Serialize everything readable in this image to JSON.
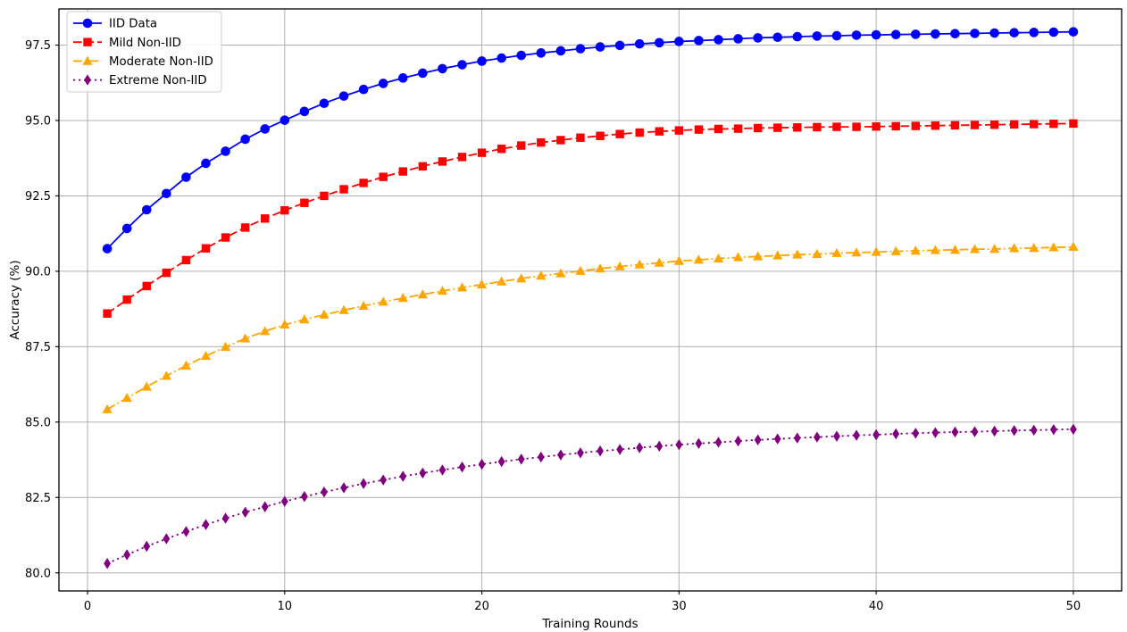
{
  "chart_data": {
    "type": "line",
    "title": "",
    "xlabel": "Training Rounds",
    "ylabel": "Accuracy (%)",
    "x": [
      1,
      2,
      3,
      4,
      5,
      6,
      7,
      8,
      9,
      10,
      11,
      12,
      13,
      14,
      15,
      16,
      17,
      18,
      19,
      20,
      21,
      22,
      23,
      24,
      25,
      26,
      27,
      28,
      29,
      30,
      31,
      32,
      33,
      34,
      35,
      36,
      37,
      38,
      39,
      40,
      41,
      42,
      43,
      44,
      45,
      46,
      47,
      48,
      49,
      50
    ],
    "series": [
      {
        "name": "IID Data",
        "color": "#0000ff",
        "marker": "circle",
        "linestyle": "solid",
        "values": [
          90.75,
          91.42,
          92.04,
          92.58,
          93.12,
          93.58,
          93.98,
          94.38,
          94.72,
          95.01,
          95.3,
          95.57,
          95.81,
          96.03,
          96.23,
          96.41,
          96.57,
          96.72,
          96.85,
          96.97,
          97.07,
          97.16,
          97.24,
          97.31,
          97.38,
          97.44,
          97.49,
          97.54,
          97.58,
          97.62,
          97.65,
          97.68,
          97.71,
          97.74,
          97.76,
          97.78,
          97.8,
          97.81,
          97.83,
          97.84,
          97.85,
          97.86,
          97.87,
          97.88,
          97.89,
          97.9,
          97.91,
          97.92,
          97.93,
          97.94
        ]
      },
      {
        "name": "Mild Non-IID",
        "color": "#ff0000",
        "marker": "square",
        "linestyle": "dashed",
        "values": [
          88.6,
          89.06,
          89.51,
          89.95,
          90.37,
          90.76,
          91.12,
          91.45,
          91.75,
          92.02,
          92.27,
          92.5,
          92.72,
          92.93,
          93.13,
          93.31,
          93.48,
          93.64,
          93.79,
          93.93,
          94.06,
          94.17,
          94.27,
          94.35,
          94.43,
          94.49,
          94.55,
          94.6,
          94.64,
          94.67,
          94.7,
          94.72,
          94.73,
          94.75,
          94.76,
          94.77,
          94.78,
          94.79,
          94.79,
          94.8,
          94.81,
          94.82,
          94.83,
          94.84,
          94.85,
          94.86,
          94.87,
          94.88,
          94.89,
          94.9
        ]
      },
      {
        "name": "Moderate Non-IID",
        "color": "#ffa500",
        "marker": "triangle",
        "linestyle": "dashdot",
        "values": [
          85.42,
          85.8,
          86.17,
          86.53,
          86.87,
          87.19,
          87.49,
          87.77,
          88.01,
          88.23,
          88.4,
          88.56,
          88.71,
          88.85,
          88.99,
          89.11,
          89.23,
          89.35,
          89.46,
          89.56,
          89.66,
          89.76,
          89.85,
          89.93,
          90.01,
          90.09,
          90.16,
          90.22,
          90.28,
          90.34,
          90.38,
          90.42,
          90.46,
          90.49,
          90.52,
          90.55,
          90.57,
          90.6,
          90.62,
          90.64,
          90.66,
          90.68,
          90.7,
          90.71,
          90.73,
          90.74,
          90.76,
          90.77,
          90.79,
          90.81
        ]
      },
      {
        "name": "Extreme Non-IID",
        "color": "#800080",
        "marker": "diamond",
        "linestyle": "dotted",
        "values": [
          80.31,
          80.6,
          80.88,
          81.13,
          81.37,
          81.6,
          81.81,
          82.01,
          82.19,
          82.37,
          82.53,
          82.68,
          82.82,
          82.96,
          83.08,
          83.2,
          83.31,
          83.41,
          83.51,
          83.6,
          83.69,
          83.77,
          83.84,
          83.91,
          83.98,
          84.04,
          84.09,
          84.15,
          84.2,
          84.25,
          84.29,
          84.33,
          84.37,
          84.41,
          84.44,
          84.47,
          84.5,
          84.53,
          84.56,
          84.58,
          84.61,
          84.63,
          84.65,
          84.67,
          84.68,
          84.7,
          84.72,
          84.73,
          84.75,
          84.76
        ]
      }
    ],
    "xticks": [
      0,
      10,
      20,
      30,
      40,
      50
    ],
    "yticks": [
      80.0,
      82.5,
      85.0,
      87.5,
      90.0,
      92.5,
      95.0,
      97.5
    ],
    "xlim": [
      -1.45,
      52.45
    ],
    "ylim": [
      79.4,
      98.7
    ],
    "grid": true,
    "grid_color": "#b0b0b0",
    "spine_color": "#000000",
    "background": "#ffffff",
    "legend_position": "upper-left"
  }
}
